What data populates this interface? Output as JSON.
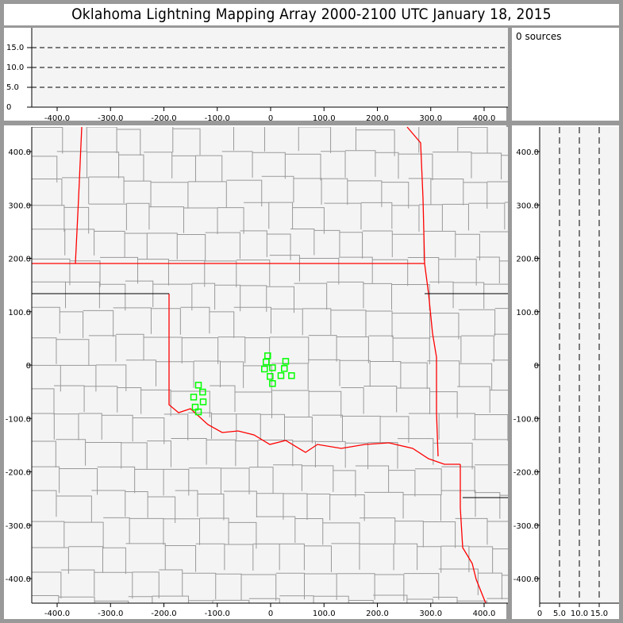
{
  "title": "Oklahoma Lightning Mapping Array   2000-2100 UTC  January 18, 2015",
  "sources_label": "0 sources",
  "colors": {
    "station": "#00ff00",
    "state_border": "#ff0000",
    "county_border": "#999999",
    "panel_bg": "#f4f4f4"
  },
  "chart_data": [
    {
      "type": "scatter",
      "panel": "plan-view",
      "xlim": [
        -446,
        446
      ],
      "ylim": [
        -446,
        446
      ],
      "xticks": [
        "-400.0",
        "-300.0",
        "-200.0",
        "-100.0",
        "0",
        "100.0",
        "200.0",
        "300.0",
        "400.0"
      ],
      "yticks": [
        "400.0",
        "300.0",
        "200.0",
        "100.0",
        "0",
        "-100.0",
        "-200.0",
        "-300.0",
        "-400.0"
      ],
      "series": [
        {
          "marker": "hollow-square",
          "points": [
            [
              -5.5,
              17.4
            ],
            [
              -8.5,
              5.9
            ],
            [
              -11.5,
              -7.4
            ],
            [
              3.5,
              -5.0
            ],
            [
              28.2,
              6.9
            ],
            [
              25.7,
              -6.4
            ],
            [
              -1.0,
              -21.3
            ],
            [
              19.3,
              -19.8
            ],
            [
              39.2,
              -19.8
            ],
            [
              3.5,
              -34.6
            ],
            [
              -135.3,
              -37.6
            ],
            [
              -127.4,
              -50.6
            ],
            [
              -144.2,
              -60.0
            ],
            [
              -126.4,
              -68.9
            ],
            [
              -141.3,
              -78.8
            ],
            [
              -135.3,
              -87.7
            ]
          ]
        }
      ],
      "background": "county map"
    },
    {
      "type": "scatter",
      "panel": "east-west-altitude",
      "xlim": [
        -446,
        446
      ],
      "ylim": [
        0,
        20
      ],
      "grid": "dashed",
      "xticks": [
        "-400.0",
        "-300.0",
        "-200.0",
        "-100.0",
        "0",
        "100.0",
        "200.0",
        "300.0",
        "400.0"
      ],
      "yticks": [
        "0",
        "5.0",
        "10.0",
        "15.0"
      ],
      "series": []
    },
    {
      "type": "scatter",
      "panel": "north-south-altitude",
      "xlim": [
        0,
        20
      ],
      "ylim": [
        -446,
        446
      ],
      "grid": "dashed",
      "xticks": [
        "0",
        "5.0",
        "10.0",
        "15.0"
      ],
      "yticks": [
        "400.0",
        "300.0",
        "200.0",
        "100.0",
        "0",
        "-100.0",
        "-200.0",
        "-300.0",
        "-400.0"
      ],
      "series": []
    }
  ]
}
